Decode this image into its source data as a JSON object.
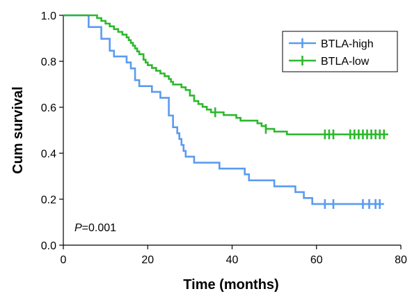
{
  "chart_data": {
    "type": "line",
    "title": "",
    "xlabel": "Time (months)",
    "ylabel": "Cum survival",
    "xlim": [
      0,
      80
    ],
    "ylim": [
      0,
      1.0
    ],
    "x_ticks": [
      0,
      20,
      40,
      60,
      80
    ],
    "x_tick_labels": [
      "0",
      "20",
      "40",
      "60",
      "80"
    ],
    "y_ticks": [
      0,
      0.2,
      0.4,
      0.6,
      0.8,
      1.0
    ],
    "y_tick_labels": [
      "0.0",
      "0.2",
      "0.4",
      "0.6",
      "0.8",
      "1.0"
    ],
    "grid": false,
    "legend_position": "top-right",
    "annotation": {
      "italic": "P",
      "rest": "=0.001"
    },
    "series": [
      {
        "name": "BTLA-high",
        "color": "#5b9bf0",
        "step_points": [
          [
            0,
            1.0
          ],
          [
            6,
            0.949
          ],
          [
            9,
            0.898
          ],
          [
            11,
            0.846
          ],
          [
            12,
            0.821
          ],
          [
            15,
            0.795
          ],
          [
            16,
            0.769
          ],
          [
            17,
            0.718
          ],
          [
            18,
            0.692
          ],
          [
            21,
            0.667
          ],
          [
            23,
            0.641
          ],
          [
            25,
            0.564
          ],
          [
            26,
            0.513
          ],
          [
            27,
            0.487
          ],
          [
            27.5,
            0.462
          ],
          [
            28,
            0.436
          ],
          [
            28.5,
            0.41
          ],
          [
            29,
            0.385
          ],
          [
            31,
            0.359
          ],
          [
            37,
            0.333
          ],
          [
            43,
            0.308
          ],
          [
            44,
            0.282
          ],
          [
            50,
            0.256
          ],
          [
            55,
            0.231
          ],
          [
            57,
            0.205
          ],
          [
            59,
            0.179
          ],
          [
            76,
            0.179
          ]
        ],
        "censored": [
          [
            62,
            0.179
          ],
          [
            64,
            0.179
          ],
          [
            71,
            0.179
          ],
          [
            72.5,
            0.179
          ],
          [
            74,
            0.179
          ],
          [
            75,
            0.179
          ]
        ]
      },
      {
        "name": "BTLA-low",
        "color": "#2db82d",
        "step_points": [
          [
            0,
            1.0
          ],
          [
            8,
            0.988
          ],
          [
            9,
            0.976
          ],
          [
            10,
            0.964
          ],
          [
            11,
            0.952
          ],
          [
            12,
            0.94
          ],
          [
            13,
            0.928
          ],
          [
            14,
            0.916
          ],
          [
            15,
            0.904
          ],
          [
            15.5,
            0.892
          ],
          [
            16,
            0.88
          ],
          [
            16.5,
            0.868
          ],
          [
            17,
            0.856
          ],
          [
            17.5,
            0.843
          ],
          [
            18,
            0.831
          ],
          [
            19,
            0.807
          ],
          [
            19.5,
            0.795
          ],
          [
            20,
            0.783
          ],
          [
            21,
            0.771
          ],
          [
            22,
            0.759
          ],
          [
            23,
            0.747
          ],
          [
            24,
            0.735
          ],
          [
            25,
            0.723
          ],
          [
            25.5,
            0.711
          ],
          [
            26,
            0.699
          ],
          [
            28,
            0.687
          ],
          [
            29,
            0.675
          ],
          [
            30,
            0.651
          ],
          [
            31,
            0.627
          ],
          [
            32,
            0.614
          ],
          [
            33,
            0.602
          ],
          [
            34,
            0.59
          ],
          [
            35,
            0.578
          ],
          [
            38,
            0.566
          ],
          [
            41,
            0.554
          ],
          [
            42,
            0.542
          ],
          [
            46,
            0.53
          ],
          [
            47,
            0.518
          ],
          [
            48,
            0.506
          ],
          [
            50,
            0.494
          ],
          [
            53,
            0.482
          ],
          [
            77,
            0.482
          ]
        ],
        "censored": [
          [
            36,
            0.578
          ],
          [
            48,
            0.506
          ],
          [
            62,
            0.482
          ],
          [
            63,
            0.482
          ],
          [
            64,
            0.482
          ],
          [
            68,
            0.482
          ],
          [
            69,
            0.482
          ],
          [
            70,
            0.482
          ],
          [
            71,
            0.482
          ],
          [
            72,
            0.482
          ],
          [
            73,
            0.482
          ],
          [
            74,
            0.482
          ],
          [
            75,
            0.482
          ],
          [
            76,
            0.482
          ]
        ]
      }
    ]
  }
}
